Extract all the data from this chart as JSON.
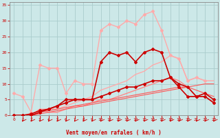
{
  "background_color": "#cce8e8",
  "grid_color": "#aacccc",
  "xlabel": "Vent moyen/en rafales ( km/h )",
  "xlabel_color": "#cc0000",
  "tick_color": "#cc0000",
  "axis_color": "#888888",
  "xlim": [
    -0.5,
    23.5
  ],
  "ylim": [
    0,
    36
  ],
  "yticks": [
    0,
    5,
    10,
    15,
    20,
    25,
    30,
    35
  ],
  "xticks": [
    0,
    1,
    2,
    3,
    4,
    5,
    6,
    7,
    8,
    9,
    10,
    11,
    12,
    13,
    14,
    15,
    16,
    17,
    18,
    19,
    20,
    21,
    22,
    23
  ],
  "lines": [
    {
      "x": [
        0,
        1,
        2,
        3,
        4,
        5,
        6,
        7,
        8,
        9,
        10,
        11,
        12,
        13,
        14,
        15,
        16,
        17,
        18,
        19,
        20,
        21,
        22
      ],
      "y": [
        7,
        6,
        1,
        16,
        15,
        15,
        7,
        11,
        10,
        10,
        27,
        29,
        28,
        30,
        29,
        32,
        33,
        27,
        19,
        18,
        11,
        12,
        11
      ],
      "color": "#ffaaaa",
      "lw": 1.0,
      "marker": "D",
      "markersize": 2.0
    },
    {
      "x": [
        0,
        1,
        2,
        3,
        4,
        5,
        6,
        7,
        8,
        9,
        10,
        11,
        12,
        13,
        14,
        15,
        16,
        17,
        18,
        19,
        20,
        21,
        22,
        23
      ],
      "y": [
        0,
        0,
        0,
        2,
        2,
        2,
        3,
        4,
        5,
        6,
        8,
        9,
        10,
        11,
        13,
        14,
        16,
        17,
        19,
        18,
        11,
        12,
        11,
        11
      ],
      "color": "#ffaaaa",
      "lw": 1.0,
      "marker": null,
      "markersize": 0
    },
    {
      "x": [
        0,
        1,
        2,
        3,
        4,
        5,
        6,
        7,
        8,
        9,
        10,
        11,
        12,
        13,
        14,
        15,
        16,
        17,
        18,
        19,
        20,
        21,
        22,
        23
      ],
      "y": [
        0,
        0,
        0.5,
        1.5,
        2,
        3,
        5,
        5,
        5,
        5,
        17,
        20,
        19,
        20,
        17,
        20,
        21,
        20,
        12,
        9,
        6,
        6,
        7,
        5
      ],
      "color": "#cc0000",
      "lw": 1.2,
      "marker": "D",
      "markersize": 2.0
    },
    {
      "x": [
        0,
        1,
        2,
        3,
        4,
        5,
        6,
        7,
        8,
        9,
        10,
        11,
        12,
        13,
        14,
        15,
        16,
        17,
        18,
        19,
        20,
        21,
        22,
        23
      ],
      "y": [
        0,
        0,
        0,
        1,
        2,
        3,
        4,
        5,
        5,
        5,
        6,
        7,
        8,
        9,
        9,
        10,
        11,
        11,
        12,
        10,
        9,
        6,
        6,
        4
      ],
      "color": "#cc0000",
      "lw": 1.2,
      "marker": "D",
      "markersize": 2.0
    },
    {
      "x": [
        0,
        1,
        2,
        3,
        4,
        5,
        6,
        7,
        8,
        9,
        10,
        11,
        12,
        13,
        14,
        15,
        16,
        17,
        18,
        19,
        20,
        21,
        22,
        23
      ],
      "y": [
        0,
        0,
        0,
        2,
        1,
        1,
        2,
        3,
        3,
        4,
        5,
        5,
        6,
        7,
        8,
        9,
        10,
        11,
        12,
        11,
        9,
        6,
        6,
        4
      ],
      "color": "#ff8888",
      "lw": 1.0,
      "marker": null,
      "markersize": 0
    },
    {
      "x": [
        0,
        1,
        2,
        3,
        4,
        5,
        6,
        7,
        8,
        9,
        10,
        11,
        12,
        13,
        14,
        15,
        16,
        17,
        18,
        19,
        20,
        21,
        22,
        23
      ],
      "y": [
        0,
        0,
        0,
        0.5,
        1,
        1.5,
        2,
        2.5,
        3,
        3.5,
        4,
        4.5,
        5,
        5.5,
        6,
        6.5,
        7,
        7.5,
        8,
        8.5,
        9,
        9.5,
        10,
        10
      ],
      "color": "#ff5555",
      "lw": 0.8,
      "marker": null,
      "markersize": 0
    },
    {
      "x": [
        0,
        1,
        2,
        3,
        4,
        5,
        6,
        7,
        8,
        9,
        10,
        11,
        12,
        13,
        14,
        15,
        16,
        17,
        18,
        19,
        20,
        21,
        22,
        23
      ],
      "y": [
        0,
        0,
        0,
        1,
        1.5,
        2,
        2.5,
        3,
        3.5,
        4,
        4.5,
        5,
        5.5,
        6,
        6.5,
        7,
        7.5,
        8,
        8.5,
        9,
        9,
        8,
        7,
        6
      ],
      "color": "#ff5555",
      "lw": 0.8,
      "marker": null,
      "markersize": 0
    }
  ],
  "arrow_color": "#cc0000"
}
